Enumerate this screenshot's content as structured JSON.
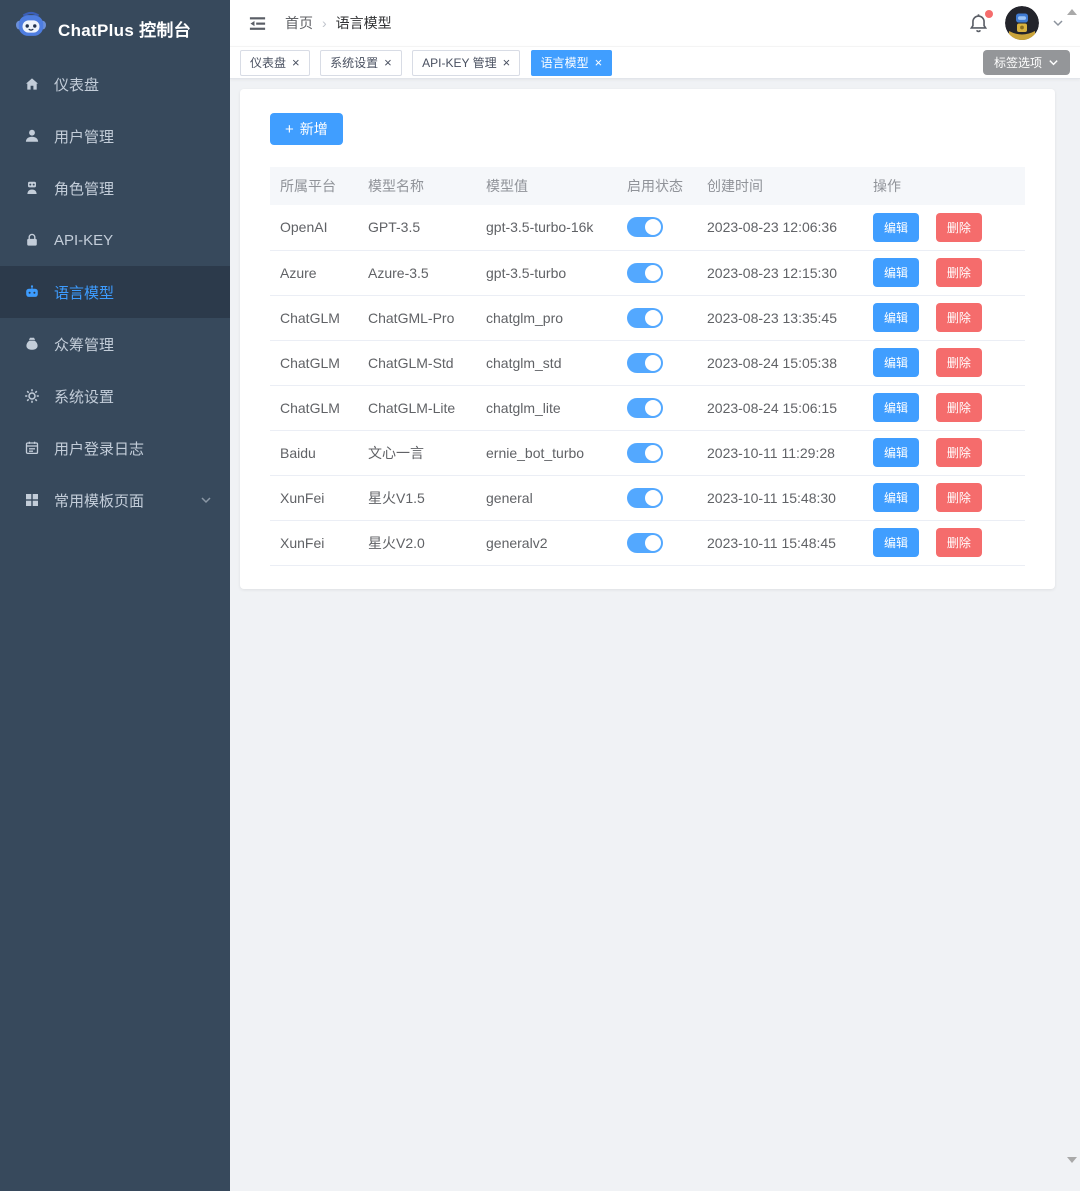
{
  "app": {
    "title": "ChatPlus 控制台"
  },
  "colors": {
    "primary": "#409eff",
    "danger": "#f56c6c",
    "toggle_on": "#53a8ff",
    "sidebar_bg": "#37495c",
    "sidebar_active_bg": "#2c3a4b",
    "sidebar_active_text": "#3d9cff",
    "content_bg": "#f0f2f5"
  },
  "sidebar": {
    "items": [
      {
        "key": "dashboard",
        "icon": "dashboard-icon",
        "label": "仪表盘"
      },
      {
        "key": "users",
        "icon": "user-icon",
        "label": "用户管理"
      },
      {
        "key": "roles",
        "icon": "role-icon",
        "label": "角色管理"
      },
      {
        "key": "api-key",
        "icon": "key-lock-icon",
        "label": "API-KEY"
      },
      {
        "key": "language-models",
        "icon": "language-model-icon",
        "label": "语言模型",
        "active": true
      },
      {
        "key": "crowdfunding",
        "icon": "crowdfunding-icon",
        "label": "众筹管理"
      },
      {
        "key": "system-settings",
        "icon": "settings-icon",
        "label": "系统设置"
      },
      {
        "key": "login-log",
        "icon": "login-log-icon",
        "label": "用户登录日志"
      },
      {
        "key": "templates",
        "icon": "templates-icon",
        "label": "常用模板页面",
        "expandable": true
      }
    ]
  },
  "header": {
    "breadcrumb": [
      "首页",
      "语言模型"
    ],
    "icons": [
      "fold-icon",
      "bell-icon",
      "notification-dot",
      "avatar",
      "chevron-down-icon"
    ]
  },
  "tabs": {
    "items": [
      {
        "key": "dashboard",
        "label": "仪表盘"
      },
      {
        "key": "system-settings",
        "label": "系统设置"
      },
      {
        "key": "api-key",
        "label": "API-KEY 管理"
      },
      {
        "key": "language-models",
        "label": "语言模型",
        "active": true
      }
    ],
    "close_glyph": "×",
    "options_button": "标签选项"
  },
  "toolbar": {
    "add_label": "新增",
    "add_icon": "+"
  },
  "table": {
    "columns": [
      "所属平台",
      "模型名称",
      "模型值",
      "启用状态",
      "创建时间",
      "操作"
    ],
    "actions": {
      "edit": "编辑",
      "delete": "删除"
    },
    "rows": [
      {
        "platform": "OpenAI",
        "name": "GPT-3.5",
        "value": "gpt-3.5-turbo-16k",
        "enabled": true,
        "created": "2023-08-23 12:06:36"
      },
      {
        "platform": "Azure",
        "name": "Azure-3.5",
        "value": "gpt-3.5-turbo",
        "enabled": true,
        "created": "2023-08-23 12:15:30"
      },
      {
        "platform": "ChatGLM",
        "name": "ChatGML-Pro",
        "value": "chatglm_pro",
        "enabled": true,
        "created": "2023-08-23 13:35:45"
      },
      {
        "platform": "ChatGLM",
        "name": "ChatGLM-Std",
        "value": "chatglm_std",
        "enabled": true,
        "created": "2023-08-24 15:05:38"
      },
      {
        "platform": "ChatGLM",
        "name": "ChatGLM-Lite",
        "value": "chatglm_lite",
        "enabled": true,
        "created": "2023-08-24 15:06:15"
      },
      {
        "platform": "Baidu",
        "name": "文心一言",
        "value": "ernie_bot_turbo",
        "enabled": true,
        "created": "2023-10-11 11:29:28"
      },
      {
        "platform": "XunFei",
        "name": "星火V1.5",
        "value": "general",
        "enabled": true,
        "created": "2023-10-11 15:48:30"
      },
      {
        "platform": "XunFei",
        "name": "星火V2.0",
        "value": "generalv2",
        "enabled": true,
        "created": "2023-10-11 15:48:45"
      }
    ]
  }
}
